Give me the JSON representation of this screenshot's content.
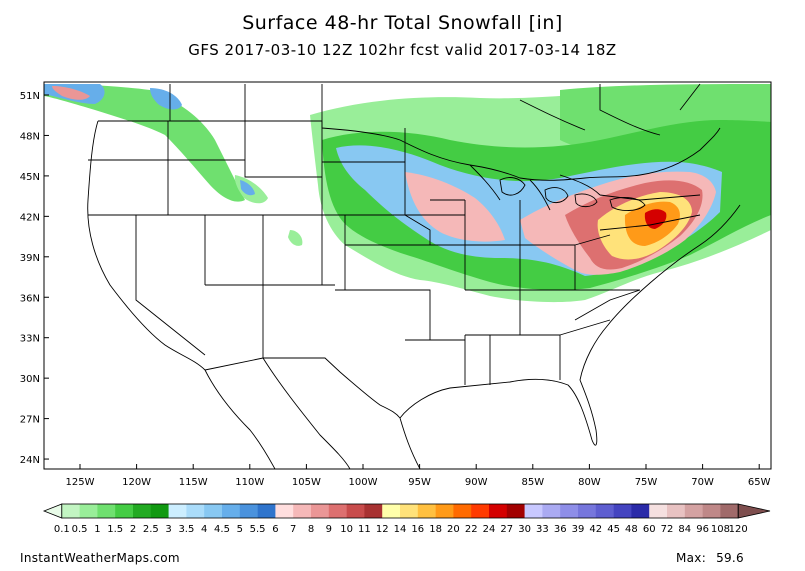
{
  "title": "Surface 48-hr Total Snowfall [in]",
  "subtitle": "GFS 2017-03-10 12Z 102hr fcst valid 2017-03-14 18Z",
  "map": {
    "lat_labels": [
      "51N",
      "48N",
      "45N",
      "42N",
      "39N",
      "36N",
      "33N",
      "30N",
      "27N",
      "24N"
    ],
    "lon_labels": [
      "125W",
      "120W",
      "115W",
      "110W",
      "105W",
      "100W",
      "95W",
      "90W",
      "85W",
      "80W",
      "75W",
      "70W",
      "65W"
    ],
    "lat_range": [
      23,
      52
    ],
    "lon_range": [
      -128,
      -65
    ]
  },
  "colorbar": {
    "labels": [
      "0.1",
      "0.5",
      "1",
      "1.5",
      "2",
      "2.5",
      "3",
      "3.5",
      "4",
      "4.5",
      "5",
      "5.5",
      "6",
      "7",
      "8",
      "9",
      "10",
      "11",
      "12",
      "14",
      "16",
      "18",
      "20",
      "22",
      "24",
      "27",
      "30",
      "33",
      "36",
      "39",
      "42",
      "45",
      "48",
      "60",
      "72",
      "84",
      "96",
      "108",
      "120"
    ],
    "colors": [
      "#e8fbe8",
      "#c2f5c2",
      "#99ee99",
      "#6fe06f",
      "#44cc44",
      "#22aa22",
      "#119911",
      "#cceeff",
      "#aadcfa",
      "#88c8f2",
      "#66aeea",
      "#4a92dd",
      "#2f74cc",
      "#ffdede",
      "#f5b8b8",
      "#ea9696",
      "#dd7070",
      "#c84c4c",
      "#a83232",
      "#ffffaa",
      "#ffe27a",
      "#ffc040",
      "#ff9a18",
      "#ff6a00",
      "#ff3a00",
      "#d40000",
      "#a20000",
      "#c8c8ff",
      "#aaaaf2",
      "#8e8ee8",
      "#7676dc",
      "#5e5ed0",
      "#4444c0",
      "#2a2aa8",
      "#f5e0e0",
      "#e8c2c2",
      "#d4a2a2",
      "#bf8888",
      "#a06a6a",
      "#7e4e4e"
    ]
  },
  "footer": {
    "site": "InstantWeatherMaps.com",
    "max_label": "Max:",
    "max_value": "59.6"
  }
}
